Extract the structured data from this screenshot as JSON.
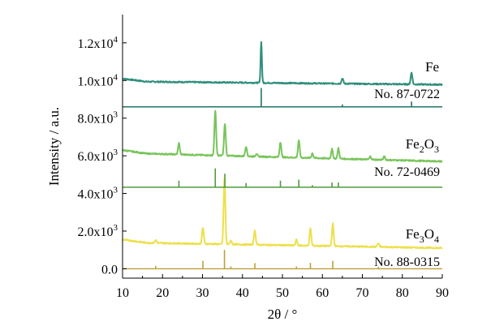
{
  "chart_data": {
    "type": "line",
    "xlabel": "2θ / °",
    "ylabel": "Intensity / a.u.",
    "xlim": [
      10,
      90
    ],
    "ylim": [
      -500,
      13500
    ],
    "xticks": [
      10,
      20,
      30,
      40,
      50,
      60,
      70,
      80,
      90
    ],
    "yticks": [
      {
        "value": 0,
        "mant": "0.0",
        "exp": ""
      },
      {
        "value": 2000,
        "mant": "2.0x10",
        "exp": "3"
      },
      {
        "value": 4000,
        "mant": "4.0x10",
        "exp": "3"
      },
      {
        "value": 6000,
        "mant": "6.0x10",
        "exp": "3"
      },
      {
        "value": 8000,
        "mant": "8.0x10",
        "exp": "3"
      },
      {
        "value": 10000,
        "mant": "1.0x10",
        "exp": "4"
      },
      {
        "value": 12000,
        "mant": "1.2x10",
        "exp": "4"
      }
    ],
    "grid": false,
    "series": [
      {
        "color": "#2f8f7b",
        "label_parts": [
          {
            "t": "Fe",
            "sub": false
          }
        ],
        "ref_label": "No. 87-0722",
        "ref_color": "#237366",
        "baseline_start": 9950,
        "baseline_end": 9780,
        "ref_baseline": 8600,
        "peaks": [
          [
            44.7,
            2200,
            0.22
          ],
          [
            65.0,
            280,
            0.3
          ],
          [
            82.3,
            620,
            0.3
          ]
        ],
        "ref_peaks": [
          [
            44.7,
            1000
          ],
          [
            65.0,
            130
          ],
          [
            82.3,
            280
          ]
        ]
      },
      {
        "color": "#78c55a",
        "label_parts": [
          {
            "t": "Fe",
            "sub": false
          },
          {
            "t": "2",
            "sub": true
          },
          {
            "t": "O",
            "sub": false
          },
          {
            "t": "3",
            "sub": true
          }
        ],
        "ref_label": "No. 72-0469",
        "ref_color": "#4f9a3c",
        "baseline_start": 6150,
        "baseline_end": 5700,
        "ref_baseline": 4330,
        "peaks": [
          [
            24.1,
            600,
            0.3
          ],
          [
            33.2,
            2400,
            0.3
          ],
          [
            35.6,
            1700,
            0.3
          ],
          [
            40.9,
            520,
            0.3
          ],
          [
            43.5,
            150,
            0.3
          ],
          [
            49.5,
            800,
            0.3
          ],
          [
            54.1,
            900,
            0.3
          ],
          [
            57.5,
            250,
            0.3
          ],
          [
            62.4,
            500,
            0.3
          ],
          [
            64.0,
            550,
            0.3
          ],
          [
            72.0,
            160,
            0.3
          ],
          [
            75.5,
            180,
            0.3
          ]
        ],
        "ref_peaks": [
          [
            24.1,
            350
          ],
          [
            33.2,
            1000
          ],
          [
            35.6,
            720
          ],
          [
            40.9,
            220
          ],
          [
            49.5,
            350
          ],
          [
            54.1,
            400
          ],
          [
            57.5,
            110
          ],
          [
            62.4,
            250
          ],
          [
            64.0,
            250
          ]
        ]
      },
      {
        "color": "#ede04a",
        "label_parts": [
          {
            "t": "Fe",
            "sub": false
          },
          {
            "t": "3",
            "sub": true
          },
          {
            "t": "O",
            "sub": false
          },
          {
            "t": "4",
            "sub": true
          }
        ],
        "ref_label": "No. 88-0315",
        "ref_color": "#c0a038",
        "baseline_start": 1400,
        "baseline_end": 1100,
        "ref_baseline": 0,
        "peaks": [
          [
            18.3,
            140,
            0.35
          ],
          [
            30.1,
            850,
            0.3
          ],
          [
            35.5,
            3500,
            0.3
          ],
          [
            37.1,
            200,
            0.3
          ],
          [
            43.1,
            750,
            0.3
          ],
          [
            53.5,
            300,
            0.3
          ],
          [
            57.0,
            900,
            0.3
          ],
          [
            62.6,
            1200,
            0.3
          ],
          [
            74.0,
            180,
            0.35
          ]
        ],
        "ref_peaks": [
          [
            18.3,
            150
          ],
          [
            30.1,
            420
          ],
          [
            35.5,
            1000
          ],
          [
            37.1,
            120
          ],
          [
            43.1,
            300
          ],
          [
            53.5,
            120
          ],
          [
            57.0,
            310
          ],
          [
            62.6,
            420
          ],
          [
            74.0,
            100
          ]
        ]
      }
    ]
  }
}
